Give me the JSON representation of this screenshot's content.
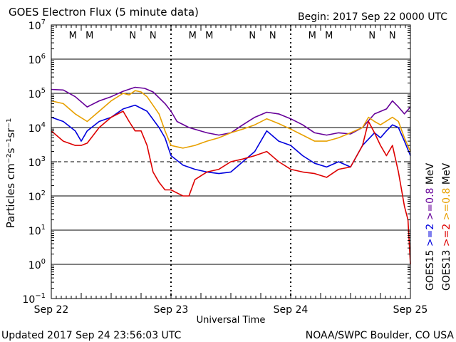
{
  "chart_data": {
    "type": "line",
    "title": "GOES Electron Flux (5 minute data)",
    "begin_label": "Begin: 2017 Sep 22 0000 UTC",
    "xlabel": "Universal Time",
    "ylabel": "Particles cm⁻²s⁻¹sr⁻¹",
    "x_unit": "days since Begin",
    "xlim": [
      0,
      3
    ],
    "x_ticks": [
      {
        "x": 0,
        "label": "Sep 22"
      },
      {
        "x": 1,
        "label": "Sep 23"
      },
      {
        "x": 2,
        "label": "Sep 24"
      },
      {
        "x": 3,
        "label": "Sep 25"
      }
    ],
    "yscale": "log",
    "ylim": [
      0.1,
      10000000
    ],
    "y_ticks": [
      {
        "v": 10000000,
        "base": "10",
        "exp": "7"
      },
      {
        "v": 1000000,
        "base": "10",
        "exp": "6"
      },
      {
        "v": 100000,
        "base": "10",
        "exp": "5"
      },
      {
        "v": 10000,
        "base": "10",
        "exp": "4"
      },
      {
        "v": 1000,
        "base": "10",
        "exp": "3"
      },
      {
        "v": 100,
        "base": "10",
        "exp": "2"
      },
      {
        "v": 10,
        "base": "10",
        "exp": "1"
      },
      {
        "v": 1,
        "base": "10",
        "exp": "0"
      },
      {
        "v": 0.1,
        "base": "10",
        "exp": "−1"
      }
    ],
    "grid": "horizontal lines at each decade",
    "threshold": {
      "value": 1000,
      "style": "dashed"
    },
    "mn_markers": [
      {
        "x": 0.18,
        "label": "M",
        "color": "#dd0000"
      },
      {
        "x": 0.32,
        "label": "M",
        "color": "#0000dd"
      },
      {
        "x": 0.68,
        "label": "N",
        "color": "#dd0000"
      },
      {
        "x": 0.85,
        "label": "N",
        "color": "#0000dd"
      },
      {
        "x": 1.18,
        "label": "M",
        "color": "#dd0000"
      },
      {
        "x": 1.32,
        "label": "M",
        "color": "#0000dd"
      },
      {
        "x": 1.68,
        "label": "N",
        "color": "#dd0000"
      },
      {
        "x": 1.85,
        "label": "N",
        "color": "#0000dd"
      },
      {
        "x": 2.18,
        "label": "M",
        "color": "#dd0000"
      },
      {
        "x": 2.32,
        "label": "M",
        "color": "#0000dd"
      },
      {
        "x": 2.68,
        "label": "N",
        "color": "#dd0000"
      },
      {
        "x": 2.85,
        "label": "N",
        "color": "#0000dd"
      }
    ],
    "legend": {
      "placement": "right, vertical",
      "columns": [
        {
          "satellite": "GOES15",
          "entries": [
            {
              "text": ">=2",
              "color": "#0000dd"
            },
            {
              "text": ">=0.8",
              "color": "#660099"
            },
            {
              "text": "MeV",
              "color": "#000000"
            }
          ]
        },
        {
          "satellite": "GOES13",
          "entries": [
            {
              "text": ">=2",
              "color": "#dd0000"
            },
            {
              "text": ">=0.8",
              "color": "#e8a000"
            },
            {
              "text": "MeV",
              "color": "#000000"
            }
          ]
        }
      ]
    },
    "series": [
      {
        "color": "#660099",
        "points": [
          [
            0,
            130000
          ],
          [
            0.1,
            125000
          ],
          [
            0.2,
            80000
          ],
          [
            0.3,
            40000
          ],
          [
            0.4,
            60000
          ],
          [
            0.5,
            80000
          ],
          [
            0.6,
            115000
          ],
          [
            0.7,
            150000
          ],
          [
            0.78,
            140000
          ],
          [
            0.85,
            110000
          ],
          [
            0.95,
            50000
          ],
          [
            1.0,
            30000
          ],
          [
            1.05,
            15000
          ],
          [
            1.15,
            10000
          ],
          [
            1.3,
            7000
          ],
          [
            1.4,
            6000
          ],
          [
            1.5,
            7000
          ],
          [
            1.6,
            12000
          ],
          [
            1.7,
            20000
          ],
          [
            1.8,
            28000
          ],
          [
            1.9,
            25000
          ],
          [
            2.0,
            18000
          ],
          [
            2.1,
            12000
          ],
          [
            2.2,
            7000
          ],
          [
            2.3,
            6000
          ],
          [
            2.4,
            7000
          ],
          [
            2.5,
            6500
          ],
          [
            2.6,
            10000
          ],
          [
            2.7,
            25000
          ],
          [
            2.8,
            35000
          ],
          [
            2.85,
            60000
          ],
          [
            2.9,
            40000
          ],
          [
            2.95,
            25000
          ],
          [
            3.0,
            40000
          ]
        ]
      },
      {
        "color": "#e8a000",
        "points": [
          [
            0,
            60000
          ],
          [
            0.1,
            50000
          ],
          [
            0.2,
            25000
          ],
          [
            0.3,
            15000
          ],
          [
            0.4,
            30000
          ],
          [
            0.5,
            60000
          ],
          [
            0.6,
            100000
          ],
          [
            0.65,
            90000
          ],
          [
            0.7,
            120000
          ],
          [
            0.75,
            110000
          ],
          [
            0.8,
            80000
          ],
          [
            0.9,
            25000
          ],
          [
            0.95,
            8000
          ],
          [
            1.0,
            3000
          ],
          [
            1.1,
            2500
          ],
          [
            1.2,
            3000
          ],
          [
            1.3,
            4000
          ],
          [
            1.4,
            5000
          ],
          [
            1.5,
            7000
          ],
          [
            1.6,
            9000
          ],
          [
            1.7,
            12000
          ],
          [
            1.8,
            18000
          ],
          [
            1.9,
            13000
          ],
          [
            2.0,
            9000
          ],
          [
            2.1,
            6000
          ],
          [
            2.2,
            4000
          ],
          [
            2.3,
            4000
          ],
          [
            2.4,
            5000
          ],
          [
            2.5,
            7000
          ],
          [
            2.6,
            10000
          ],
          [
            2.65,
            20000
          ],
          [
            2.7,
            15000
          ],
          [
            2.75,
            12000
          ],
          [
            2.85,
            20000
          ],
          [
            2.9,
            15000
          ],
          [
            2.95,
            5000
          ],
          [
            3.0,
            2000
          ]
        ]
      },
      {
        "color": "#0000dd",
        "points": [
          [
            0,
            20000
          ],
          [
            0.1,
            15000
          ],
          [
            0.2,
            8000
          ],
          [
            0.25,
            4000
          ],
          [
            0.3,
            8000
          ],
          [
            0.4,
            15000
          ],
          [
            0.5,
            20000
          ],
          [
            0.6,
            35000
          ],
          [
            0.7,
            45000
          ],
          [
            0.8,
            30000
          ],
          [
            0.9,
            10000
          ],
          [
            0.95,
            5000
          ],
          [
            1.0,
            1500
          ],
          [
            1.1,
            800
          ],
          [
            1.2,
            600
          ],
          [
            1.3,
            500
          ],
          [
            1.4,
            450
          ],
          [
            1.5,
            500
          ],
          [
            1.6,
            1000
          ],
          [
            1.7,
            2000
          ],
          [
            1.8,
            8000
          ],
          [
            1.9,
            4000
          ],
          [
            2.0,
            3000
          ],
          [
            2.1,
            1500
          ],
          [
            2.2,
            900
          ],
          [
            2.3,
            700
          ],
          [
            2.4,
            1000
          ],
          [
            2.5,
            700
          ],
          [
            2.6,
            3000
          ],
          [
            2.7,
            7000
          ],
          [
            2.75,
            5000
          ],
          [
            2.8,
            8000
          ],
          [
            2.85,
            12000
          ],
          [
            2.9,
            10000
          ],
          [
            2.95,
            4000
          ],
          [
            3.0,
            1500
          ]
        ]
      },
      {
        "color": "#dd0000",
        "points": [
          [
            0,
            8000
          ],
          [
            0.1,
            4000
          ],
          [
            0.2,
            3000
          ],
          [
            0.25,
            3000
          ],
          [
            0.3,
            3500
          ],
          [
            0.4,
            10000
          ],
          [
            0.5,
            20000
          ],
          [
            0.6,
            30000
          ],
          [
            0.65,
            15000
          ],
          [
            0.7,
            8000
          ],
          [
            0.75,
            8000
          ],
          [
            0.8,
            3000
          ],
          [
            0.85,
            500
          ],
          [
            0.9,
            250
          ],
          [
            0.95,
            150
          ],
          [
            1.0,
            150
          ],
          [
            1.1,
            100
          ],
          [
            1.15,
            100
          ],
          [
            1.2,
            300
          ],
          [
            1.3,
            500
          ],
          [
            1.4,
            600
          ],
          [
            1.5,
            1000
          ],
          [
            1.6,
            1200
          ],
          [
            1.7,
            1500
          ],
          [
            1.8,
            2000
          ],
          [
            1.9,
            1000
          ],
          [
            2.0,
            600
          ],
          [
            2.1,
            500
          ],
          [
            2.2,
            450
          ],
          [
            2.3,
            350
          ],
          [
            2.4,
            600
          ],
          [
            2.5,
            700
          ],
          [
            2.6,
            3000
          ],
          [
            2.65,
            15000
          ],
          [
            2.7,
            7000
          ],
          [
            2.75,
            3000
          ],
          [
            2.8,
            1500
          ],
          [
            2.85,
            3000
          ],
          [
            2.9,
            500
          ],
          [
            2.95,
            50
          ],
          [
            2.98,
            20
          ],
          [
            3.0,
            1
          ]
        ]
      }
    ]
  },
  "footer": {
    "updated": "Updated 2017 Sep 24 23:56:03 UTC",
    "credit": "NOAA/SWPC Boulder, CO USA"
  }
}
